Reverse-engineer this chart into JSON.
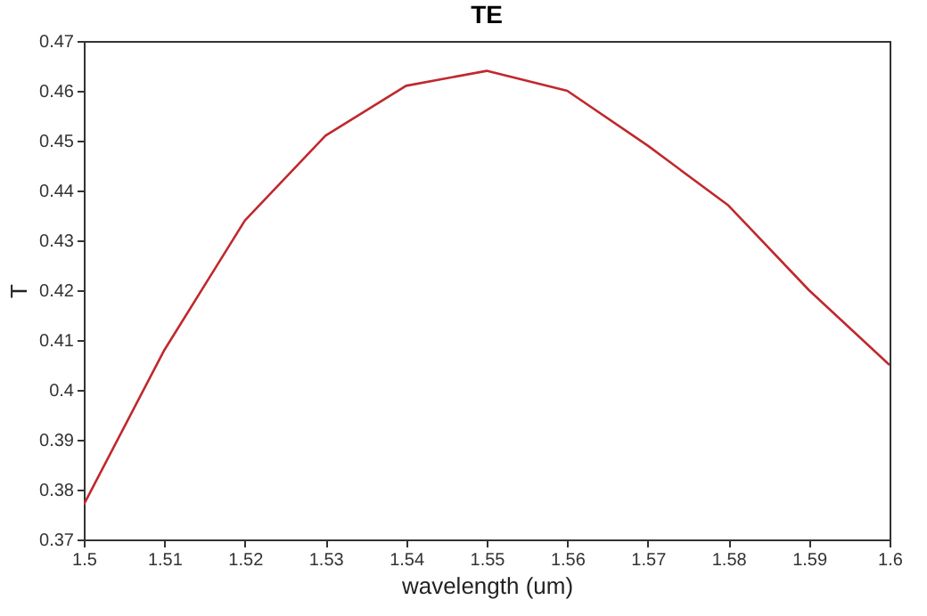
{
  "chart_data": {
    "type": "line",
    "title": "TE",
    "xlabel": "wavelength (um)",
    "ylabel": "T",
    "x": [
      1.5,
      1.51,
      1.52,
      1.53,
      1.54,
      1.55,
      1.56,
      1.57,
      1.58,
      1.59,
      1.6
    ],
    "series": [
      {
        "color": "#c0282d",
        "values": [
          0.377,
          0.408,
          0.434,
          0.451,
          0.461,
          0.464,
          0.46,
          0.449,
          0.437,
          0.42,
          0.405
        ]
      }
    ],
    "xlim": [
      1.5,
      1.6
    ],
    "xticks": [
      1.5,
      1.51,
      1.52,
      1.53,
      1.54,
      1.55,
      1.56,
      1.57,
      1.58,
      1.59,
      1.6
    ],
    "ylim": [
      0.37,
      0.47
    ],
    "yticks": [
      0.37,
      0.38,
      0.39,
      0.4,
      0.41,
      0.42,
      0.43,
      0.44,
      0.45,
      0.46,
      0.47
    ],
    "marker": "none",
    "line_style": "solid"
  }
}
